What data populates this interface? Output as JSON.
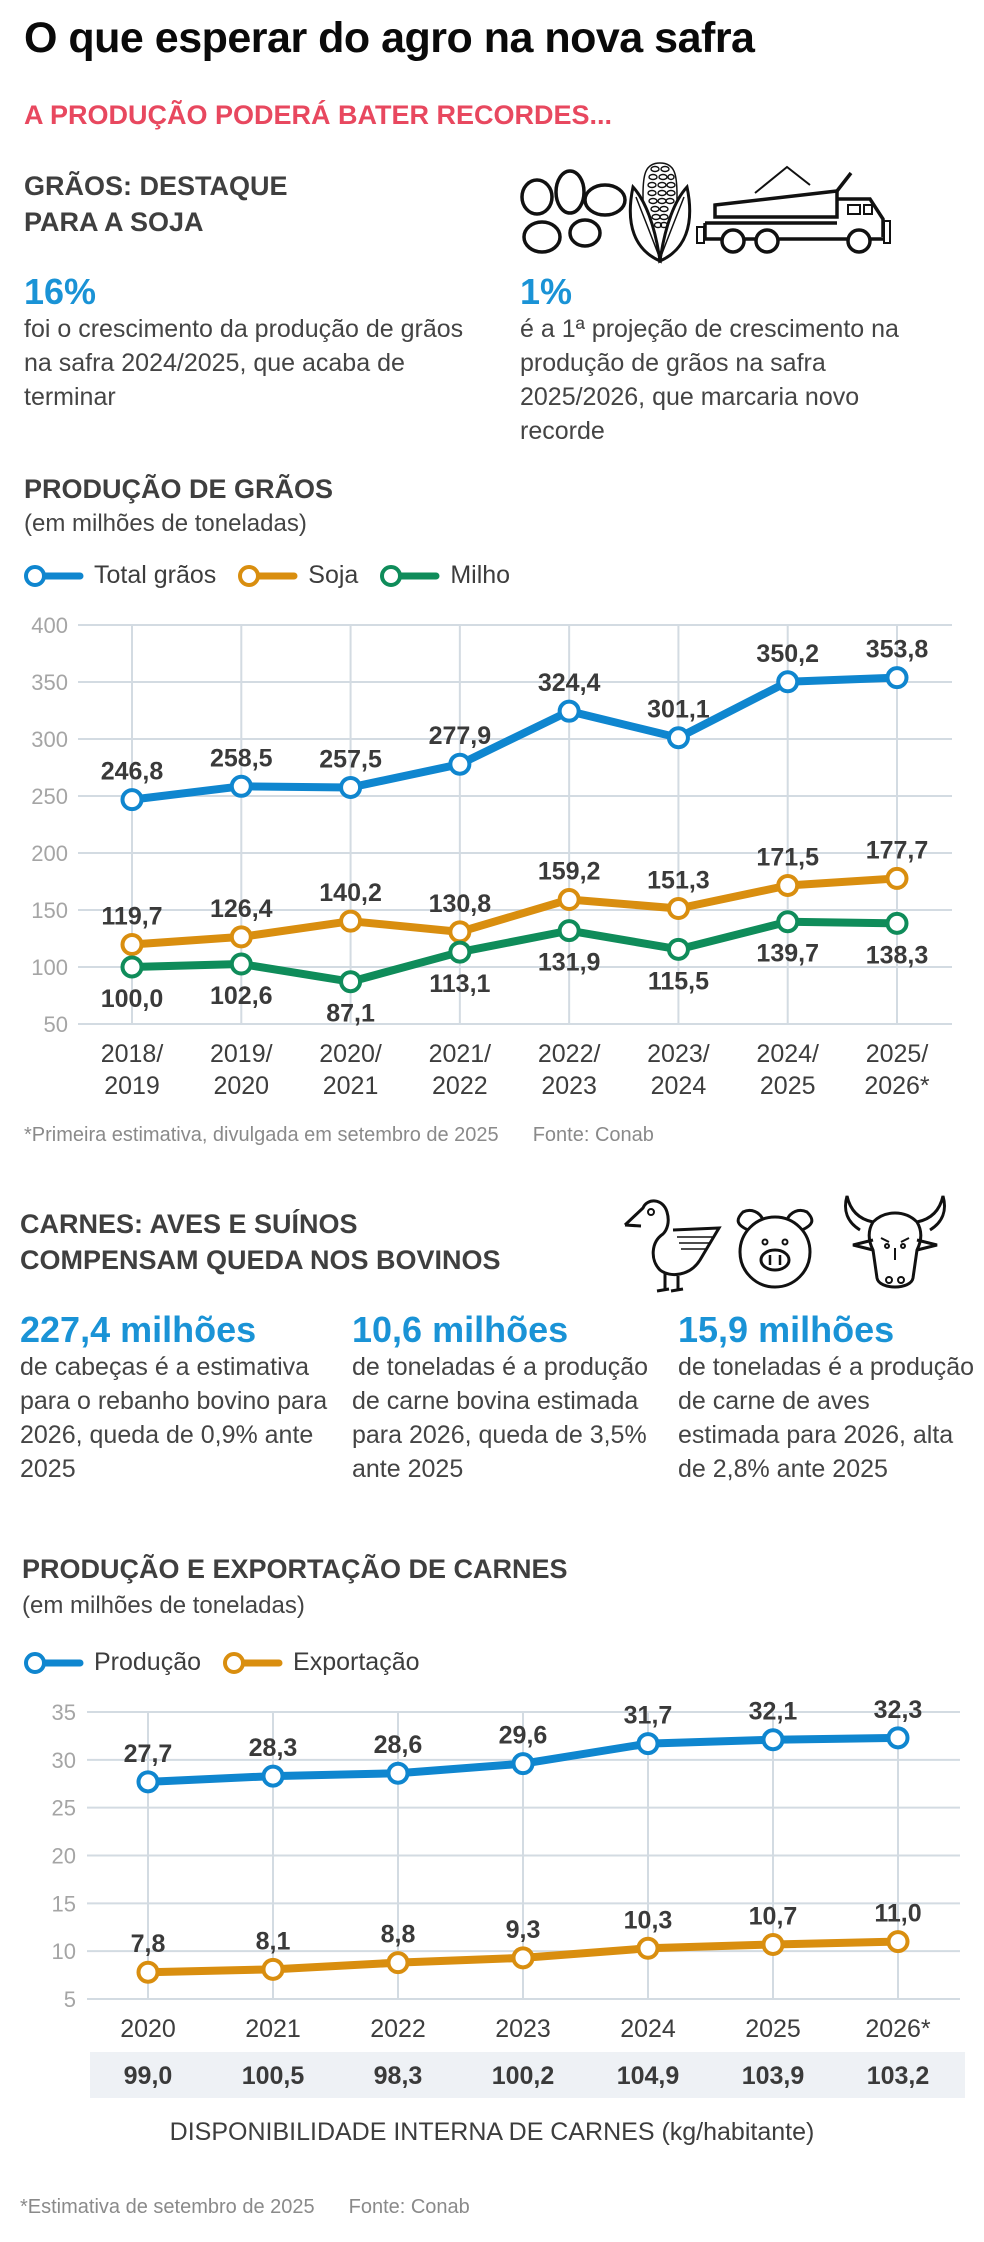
{
  "header": {
    "title": "O que esperar do agro na nova safra",
    "kicker": "A PRODUÇÃO PODERÁ BATER RECORDES..."
  },
  "colors": {
    "accent_blue": "#1a93d6",
    "kicker_red": "#e8485f",
    "series_blue": "#0f86cf",
    "series_orange": "#d98e0f",
    "series_green": "#0f8c5a",
    "band_bg": "#eef1f5"
  },
  "graos": {
    "heading_line1": "GRÃOS: DESTAQUE",
    "heading_line2": "PARA A SOJA",
    "icons": [
      "soybeans-icon",
      "corn-icon",
      "truck-icon"
    ],
    "stats": [
      {
        "value": "16%",
        "text": "foi o crescimento da produção de grãos na safra 2024/2025, que acaba de terminar"
      },
      {
        "value": "1%",
        "text": "é a 1ª projeção de crescimento na produção de grãos na safra 2025/2026, que marcaria novo recorde"
      }
    ]
  },
  "carnes": {
    "heading_line1": "CARNES: AVES E SUÍNOS",
    "heading_line2": "COMPENSAM QUEDA NOS BOVINOS",
    "icons": [
      "duck-icon",
      "pig-icon",
      "bull-icon"
    ],
    "stats": [
      {
        "value": "227,4 milhões",
        "text": "de cabeças é a estimativa para o rebanho bovino para 2026, queda de 0,9% ante 2025"
      },
      {
        "value": "10,6 milhões",
        "text": "de toneladas é a produção de carne bovina estimada para 2026, queda de 3,5% ante 2025"
      },
      {
        "value": "15,9 milhões",
        "text": "de toneladas é a produção de carne de aves estimada para 2026, alta de 2,8% ante 2025"
      }
    ]
  },
  "chart_data": [
    {
      "type": "line",
      "title": "PRODUÇÃO DE GRÃOS",
      "subtitle": "(em milhões de toneladas)",
      "categories": [
        "2018/\n2019",
        "2019/\n2020",
        "2020/\n2021",
        "2021/\n2022",
        "2022/\n2023",
        "2023/\n2024",
        "2024/\n2025",
        "2025/\n2026*"
      ],
      "category_lines": [
        [
          "2018/",
          "2019"
        ],
        [
          "2019/",
          "2020"
        ],
        [
          "2020/",
          "2021"
        ],
        [
          "2021/",
          "2022"
        ],
        [
          "2022/",
          "2023"
        ],
        [
          "2023/",
          "2024"
        ],
        [
          "2024/",
          "2025"
        ],
        [
          "2025/",
          "2026*"
        ]
      ],
      "series": [
        {
          "name": "Total grãos",
          "color": "#0f86cf",
          "values": [
            246.8,
            258.5,
            257.5,
            277.9,
            324.4,
            301.1,
            350.2,
            353.8
          ],
          "labels": [
            "246,8",
            "258,5",
            "257,5",
            "277,9",
            "324,4",
            "301,1",
            "350,2",
            "353,8"
          ],
          "label_position": "above"
        },
        {
          "name": "Soja",
          "color": "#d98e0f",
          "values": [
            119.7,
            126.4,
            140.2,
            130.8,
            159.2,
            151.3,
            171.5,
            177.7
          ],
          "labels": [
            "119,7",
            "126,4",
            "140,2",
            "130,8",
            "159,2",
            "151,3",
            "171,5",
            "177,7"
          ],
          "label_position": "above"
        },
        {
          "name": "Milho",
          "color": "#0f8c5a",
          "values": [
            100.0,
            102.6,
            87.1,
            113.1,
            131.9,
            115.5,
            139.7,
            138.3
          ],
          "labels": [
            "100,0",
            "102,6",
            "87,1",
            "113,1",
            "131,9",
            "115,5",
            "139,7",
            "138,3"
          ],
          "label_position": "below"
        }
      ],
      "yticks": [
        400,
        350,
        300,
        250,
        200,
        150,
        100,
        50
      ],
      "ylim": [
        50,
        400
      ],
      "xlabel": "",
      "ylabel": "",
      "grid": true,
      "legend": "top-left",
      "footnote": "*Primeira estimativa, divulgada em setembro de 2025",
      "source": "Fonte: Conab"
    },
    {
      "type": "line",
      "title": "PRODUÇÃO E EXPORTAÇÃO DE CARNES",
      "subtitle": "(em milhões de toneladas)",
      "categories": [
        "2020",
        "2021",
        "2022",
        "2023",
        "2024",
        "2025",
        "2026*"
      ],
      "series": [
        {
          "name": "Produção",
          "color": "#0f86cf",
          "values": [
            27.7,
            28.3,
            28.6,
            29.6,
            31.7,
            32.1,
            32.3
          ],
          "labels": [
            "27,7",
            "28,3",
            "28,6",
            "29,6",
            "31,7",
            "32,1",
            "32,3"
          ],
          "label_position": "above"
        },
        {
          "name": "Exportação",
          "color": "#d98e0f",
          "values": [
            7.8,
            8.1,
            8.8,
            9.3,
            10.3,
            10.7,
            11.0
          ],
          "labels": [
            "7,8",
            "8,1",
            "8,8",
            "9,3",
            "10,3",
            "10,7",
            "11,0"
          ],
          "label_position": "above"
        }
      ],
      "yticks": [
        35,
        30,
        25,
        20,
        15,
        10,
        5
      ],
      "ylim": [
        5,
        35
      ],
      "xlabel": "",
      "ylabel": "",
      "grid": true,
      "legend": "top-left",
      "table_row": {
        "label": "DISPONIBILIDADE INTERNA DE CARNES (kg/habitante)",
        "values": [
          "99,0",
          "100,5",
          "98,3",
          "100,2",
          "104,9",
          "103,9",
          "103,2"
        ]
      },
      "footnote": "*Estimativa de setembro de 2025",
      "source": "Fonte: Conab"
    }
  ]
}
